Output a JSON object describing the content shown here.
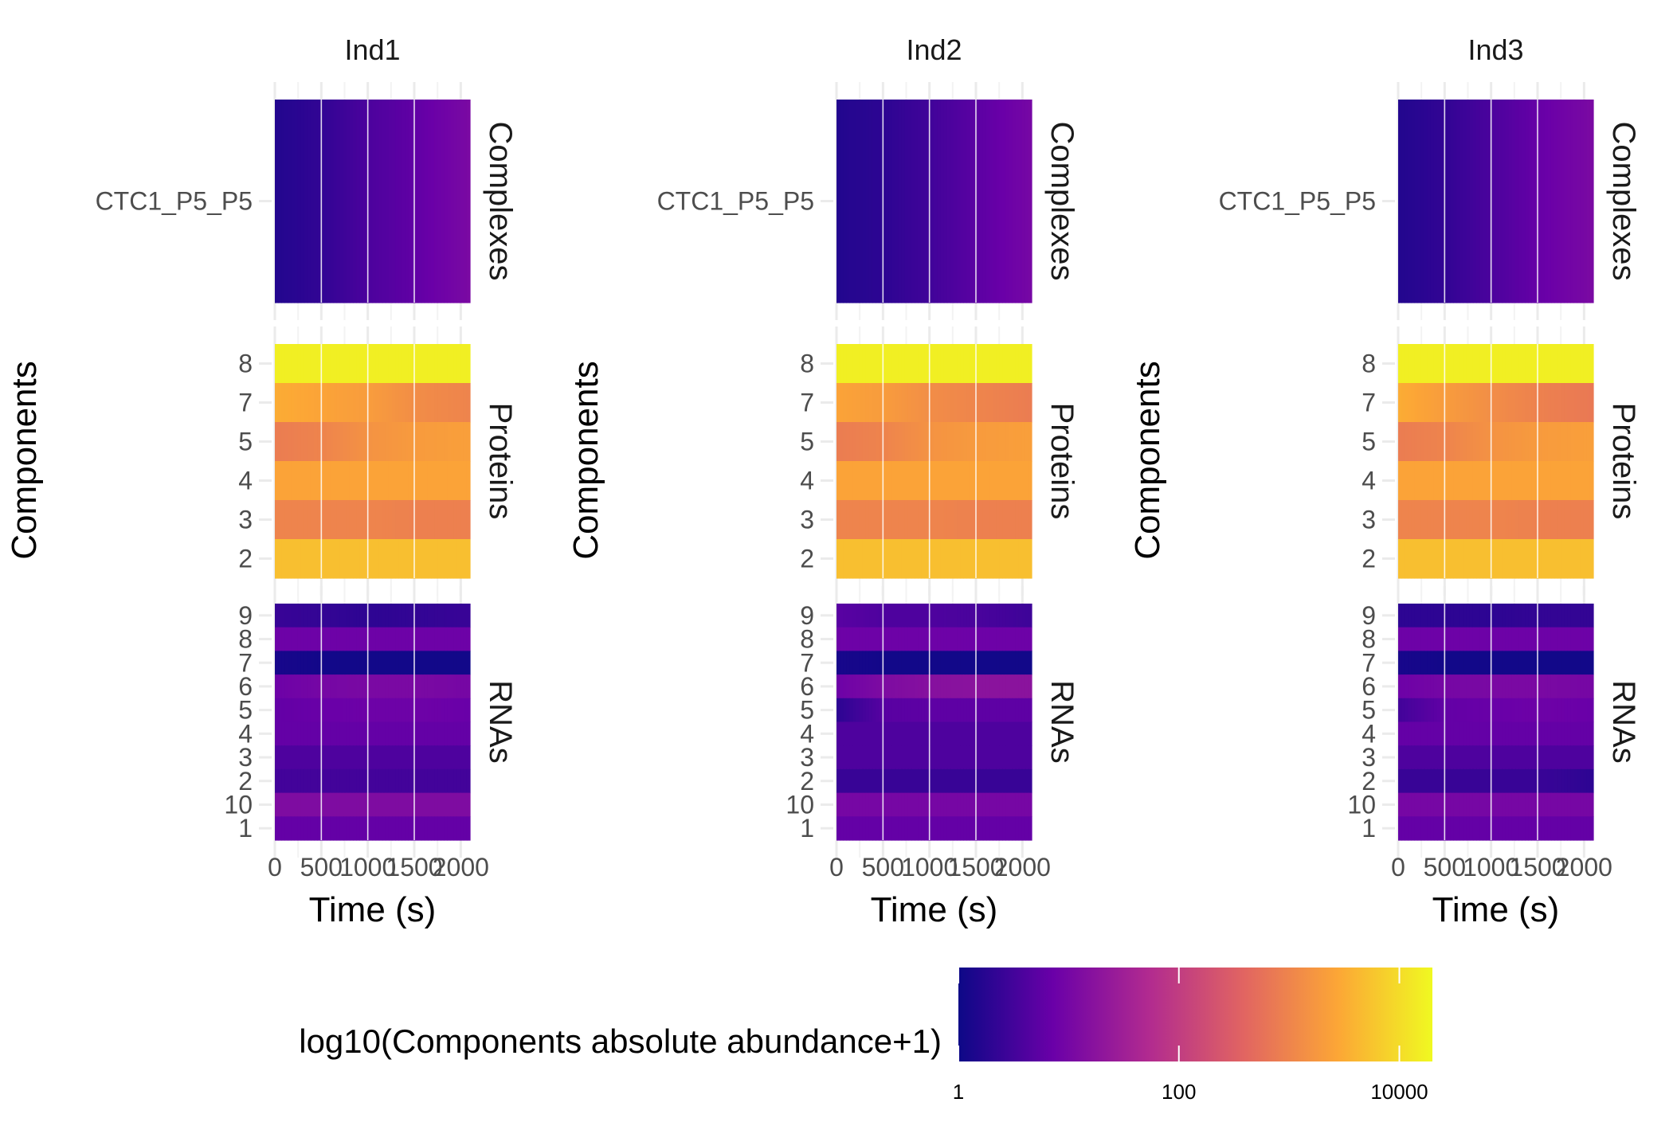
{
  "chart_data": {
    "type": "heatmap",
    "xlabel": "Time (s)",
    "ylabel": "Components",
    "x_ticks": [
      "0",
      "500",
      "1000",
      "1500",
      "2000"
    ],
    "xlim": [
      0,
      2100
    ],
    "strips": [
      "Complexes",
      "Proteins",
      "RNAs"
    ],
    "rows": {
      "Complexes": [
        "CTC1_P5_P5"
      ],
      "Proteins": [
        "8",
        "7",
        "5",
        "4",
        "3",
        "2"
      ],
      "RNAs": [
        "9",
        "8",
        "7",
        "6",
        "5",
        "4",
        "3",
        "2",
        "10",
        "1"
      ]
    },
    "panels": [
      {
        "title": "Ind1",
        "values": {
          "Complexes": [
            [
              0.2,
              0.35,
              0.6,
              0.8,
              1.05
            ]
          ],
          "Proteins": [
            [
              4.2,
              4.2,
              4.2,
              4.2,
              4.2
            ],
            [
              3.5,
              3.4,
              3.3,
              3.1,
              3.0
            ],
            [
              2.9,
              3.0,
              3.2,
              3.3,
              3.35
            ],
            [
              3.4,
              3.4,
              3.4,
              3.4,
              3.4
            ],
            [
              3.0,
              3.0,
              3.0,
              2.95,
              2.95
            ],
            [
              3.7,
              3.7,
              3.7,
              3.7,
              3.7
            ]
          ],
          "RNAs": [
            [
              0.4,
              0.35,
              0.3,
              0.35,
              0.4
            ],
            [
              0.9,
              0.9,
              0.9,
              0.9,
              0.9
            ],
            [
              0.1,
              0.05,
              0.05,
              0.05,
              0.05
            ],
            [
              0.9,
              1.0,
              1.05,
              1.05,
              1.0
            ],
            [
              0.8,
              0.85,
              0.9,
              0.9,
              0.85
            ],
            [
              0.8,
              0.8,
              0.8,
              0.8,
              0.8
            ],
            [
              0.6,
              0.6,
              0.6,
              0.6,
              0.6
            ],
            [
              0.5,
              0.5,
              0.5,
              0.5,
              0.5
            ],
            [
              1.1,
              1.1,
              1.1,
              1.1,
              1.1
            ],
            [
              0.8,
              0.8,
              0.8,
              0.8,
              0.8
            ]
          ]
        }
      },
      {
        "title": "Ind2",
        "values": {
          "Complexes": [
            [
              0.2,
              0.3,
              0.5,
              0.75,
              1.0
            ]
          ],
          "Proteins": [
            [
              4.2,
              4.2,
              4.2,
              4.2,
              4.2
            ],
            [
              3.4,
              3.3,
              3.1,
              3.0,
              2.9
            ],
            [
              2.9,
              3.0,
              3.2,
              3.3,
              3.35
            ],
            [
              3.4,
              3.4,
              3.4,
              3.4,
              3.4
            ],
            [
              3.0,
              3.0,
              3.0,
              2.95,
              2.95
            ],
            [
              3.7,
              3.7,
              3.7,
              3.7,
              3.7
            ]
          ],
          "RNAs": [
            [
              0.7,
              0.6,
              0.6,
              0.55,
              0.45
            ],
            [
              0.9,
              0.9,
              0.9,
              0.9,
              0.9
            ],
            [
              0.1,
              0.05,
              0.05,
              0.05,
              0.05
            ],
            [
              0.9,
              1.1,
              1.2,
              1.25,
              1.25
            ],
            [
              0.3,
              0.7,
              0.75,
              0.75,
              0.75
            ],
            [
              0.6,
              0.6,
              0.6,
              0.6,
              0.6
            ],
            [
              0.6,
              0.6,
              0.6,
              0.6,
              0.6
            ],
            [
              0.4,
              0.4,
              0.4,
              0.4,
              0.4
            ],
            [
              1.0,
              1.0,
              1.0,
              1.0,
              1.0
            ],
            [
              0.8,
              0.8,
              0.8,
              0.8,
              0.8
            ]
          ]
        }
      },
      {
        "title": "Ind3",
        "values": {
          "Complexes": [
            [
              0.2,
              0.35,
              0.6,
              0.85,
              1.05
            ]
          ],
          "Proteins": [
            [
              4.2,
              4.2,
              4.2,
              4.2,
              4.2
            ],
            [
              3.5,
              3.3,
              3.1,
              2.95,
              2.85
            ],
            [
              2.9,
              3.0,
              3.2,
              3.3,
              3.35
            ],
            [
              3.4,
              3.4,
              3.4,
              3.4,
              3.4
            ],
            [
              3.0,
              3.0,
              3.0,
              2.95,
              2.95
            ],
            [
              3.7,
              3.7,
              3.7,
              3.7,
              3.7
            ]
          ],
          "RNAs": [
            [
              0.3,
              0.3,
              0.3,
              0.35,
              0.35
            ],
            [
              0.9,
              0.9,
              0.9,
              0.9,
              0.9
            ],
            [
              0.1,
              0.05,
              0.05,
              0.05,
              0.05
            ],
            [
              0.9,
              1.0,
              1.05,
              1.05,
              1.0
            ],
            [
              0.5,
              0.8,
              0.85,
              0.9,
              0.85
            ],
            [
              0.8,
              0.8,
              0.8,
              0.8,
              0.8
            ],
            [
              0.6,
              0.6,
              0.6,
              0.6,
              0.6
            ],
            [
              0.4,
              0.4,
              0.4,
              0.4,
              0.3
            ],
            [
              1.0,
              1.0,
              1.0,
              1.0,
              1.0
            ],
            [
              0.8,
              0.8,
              0.8,
              0.8,
              0.8
            ]
          ]
        }
      }
    ],
    "legend": {
      "title": "log10(Components absolute abundance+1)",
      "scale": "log10",
      "range": [
        0,
        4.3
      ],
      "ticks": [
        "1",
        "100",
        "10000"
      ],
      "tick_values": [
        0,
        2,
        4
      ],
      "placement": "bottom",
      "palette": [
        "#0d0887",
        "#6a00a8",
        "#b12a90",
        "#e16462",
        "#fca636",
        "#f0f921"
      ]
    },
    "grid": true
  }
}
